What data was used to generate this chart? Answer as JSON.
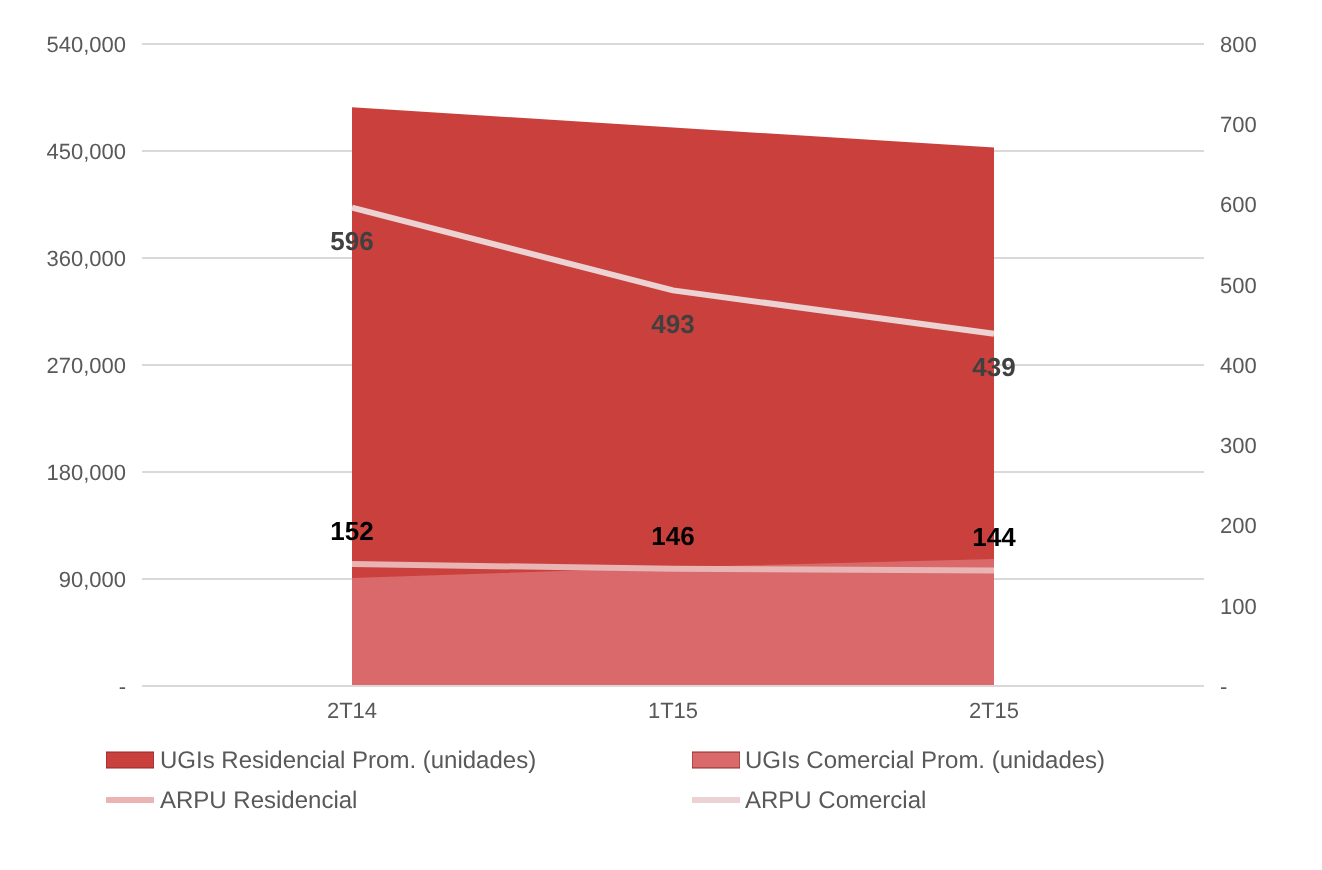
{
  "chart_data": {
    "type": "area",
    "categories": [
      "2T14",
      "1T15",
      "2T15"
    ],
    "series": [
      {
        "name": "UGIs Residencial Prom. (unidades)",
        "color": "#c9403c",
        "values": [
          486000,
          469000,
          452000
        ]
      },
      {
        "name": "UGIs Comercial Prom. (unidades)",
        "color": "#d9696a",
        "values": [
          90000,
          99000,
          106000
        ]
      },
      {
        "name": "ARPU Residencial",
        "type": "line",
        "axis": "y2",
        "color": "#e8b4b4",
        "values": [
          152,
          146,
          144
        ],
        "value_labels": [
          "152",
          "146",
          "144"
        ]
      },
      {
        "name": "ARPU Comercial",
        "type": "line",
        "axis": "y2",
        "color": "#ecd2d2",
        "values": [
          596,
          493,
          439
        ],
        "value_labels": [
          "596",
          "493",
          "439"
        ]
      }
    ],
    "ylim": [
      0,
      540000
    ],
    "yticks": [
      {
        "value": 0,
        "label": "-"
      },
      {
        "value": 90000,
        "label": "90,000"
      },
      {
        "value": 180000,
        "label": "180,000"
      },
      {
        "value": 270000,
        "label": "270,000"
      },
      {
        "value": 360000,
        "label": "360,000"
      },
      {
        "value": 450000,
        "label": "450,000"
      },
      {
        "value": 540000,
        "label": "540,000"
      }
    ],
    "y2lim": [
      0,
      800
    ],
    "y2ticks": [
      {
        "value": 0,
        "label": "-"
      },
      100,
      200,
      300,
      400,
      500,
      600,
      700,
      800
    ],
    "grid": "y",
    "legend": "bottom",
    "line_style": "solid",
    "marker": "none"
  }
}
